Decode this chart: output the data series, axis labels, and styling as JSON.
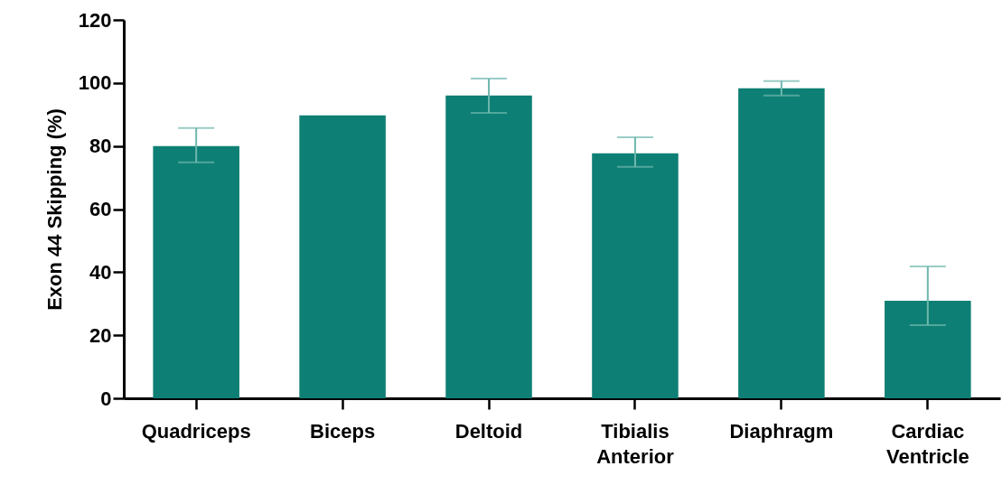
{
  "chart_data": {
    "type": "bar",
    "ylabel": "Exon 44 Skipping (%)",
    "categories": [
      "Quadriceps",
      "Biceps",
      "Deltoid",
      "Tibialis Anterior",
      "Diaphragm",
      "Cardiac Ventricle"
    ],
    "values": [
      80,
      89.7,
      96,
      77.7,
      98.3,
      30.9
    ],
    "errors": [
      [
        74.8,
        85.7
      ],
      null,
      [
        90.5,
        101.4
      ],
      [
        73.4,
        82.8
      ],
      [
        96,
        100.6
      ],
      [
        23.2,
        41.8
      ]
    ],
    "color": "#0e7f74",
    "ylim": [
      0,
      120
    ],
    "yticks": [
      0,
      20,
      40,
      60,
      80,
      100,
      120
    ],
    "grid": false
  }
}
